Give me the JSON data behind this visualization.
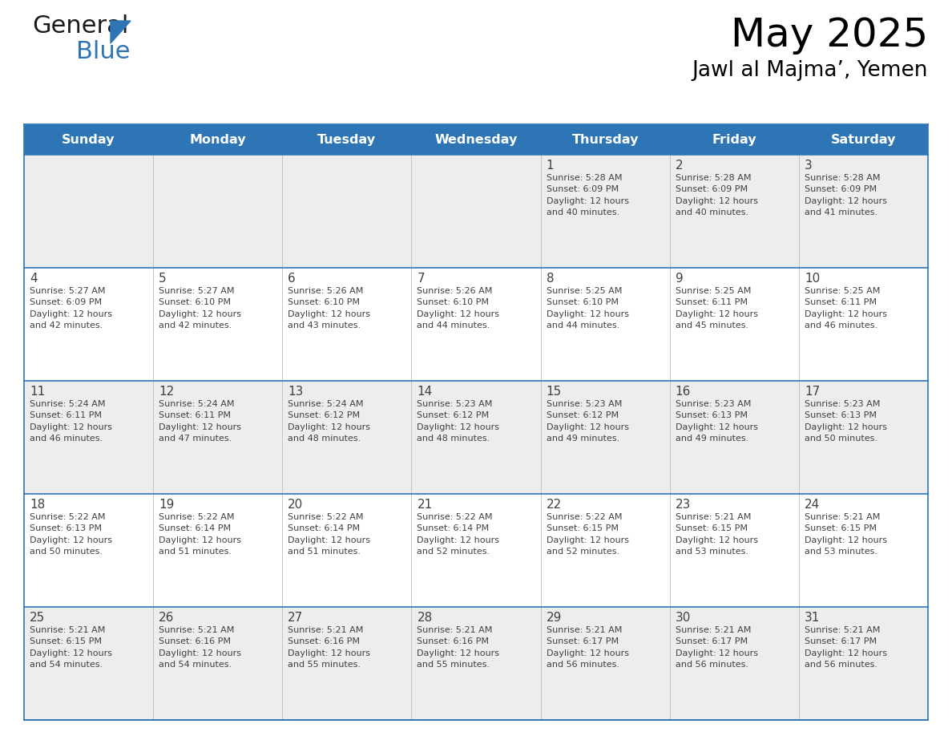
{
  "title": "May 2025",
  "subtitle": "Jawl al Majma’, Yemen",
  "header_bg_color": "#2E75B6",
  "header_text_color": "#FFFFFF",
  "row0_bg": "#EDEDED",
  "row1_bg": "#FFFFFF",
  "row2_bg": "#EDEDED",
  "row3_bg": "#FFFFFF",
  "row4_bg": "#EDEDED",
  "border_color": "#2E75B6",
  "text_color": "#404040",
  "days_of_week": [
    "Sunday",
    "Monday",
    "Tuesday",
    "Wednesday",
    "Thursday",
    "Friday",
    "Saturday"
  ],
  "weeks": [
    [
      {
        "day": "",
        "info": ""
      },
      {
        "day": "",
        "info": ""
      },
      {
        "day": "",
        "info": ""
      },
      {
        "day": "",
        "info": ""
      },
      {
        "day": "1",
        "info": "Sunrise: 5:28 AM\nSunset: 6:09 PM\nDaylight: 12 hours\nand 40 minutes."
      },
      {
        "day": "2",
        "info": "Sunrise: 5:28 AM\nSunset: 6:09 PM\nDaylight: 12 hours\nand 40 minutes."
      },
      {
        "day": "3",
        "info": "Sunrise: 5:28 AM\nSunset: 6:09 PM\nDaylight: 12 hours\nand 41 minutes."
      }
    ],
    [
      {
        "day": "4",
        "info": "Sunrise: 5:27 AM\nSunset: 6:09 PM\nDaylight: 12 hours\nand 42 minutes."
      },
      {
        "day": "5",
        "info": "Sunrise: 5:27 AM\nSunset: 6:10 PM\nDaylight: 12 hours\nand 42 minutes."
      },
      {
        "day": "6",
        "info": "Sunrise: 5:26 AM\nSunset: 6:10 PM\nDaylight: 12 hours\nand 43 minutes."
      },
      {
        "day": "7",
        "info": "Sunrise: 5:26 AM\nSunset: 6:10 PM\nDaylight: 12 hours\nand 44 minutes."
      },
      {
        "day": "8",
        "info": "Sunrise: 5:25 AM\nSunset: 6:10 PM\nDaylight: 12 hours\nand 44 minutes."
      },
      {
        "day": "9",
        "info": "Sunrise: 5:25 AM\nSunset: 6:11 PM\nDaylight: 12 hours\nand 45 minutes."
      },
      {
        "day": "10",
        "info": "Sunrise: 5:25 AM\nSunset: 6:11 PM\nDaylight: 12 hours\nand 46 minutes."
      }
    ],
    [
      {
        "day": "11",
        "info": "Sunrise: 5:24 AM\nSunset: 6:11 PM\nDaylight: 12 hours\nand 46 minutes."
      },
      {
        "day": "12",
        "info": "Sunrise: 5:24 AM\nSunset: 6:11 PM\nDaylight: 12 hours\nand 47 minutes."
      },
      {
        "day": "13",
        "info": "Sunrise: 5:24 AM\nSunset: 6:12 PM\nDaylight: 12 hours\nand 48 minutes."
      },
      {
        "day": "14",
        "info": "Sunrise: 5:23 AM\nSunset: 6:12 PM\nDaylight: 12 hours\nand 48 minutes."
      },
      {
        "day": "15",
        "info": "Sunrise: 5:23 AM\nSunset: 6:12 PM\nDaylight: 12 hours\nand 49 minutes."
      },
      {
        "day": "16",
        "info": "Sunrise: 5:23 AM\nSunset: 6:13 PM\nDaylight: 12 hours\nand 49 minutes."
      },
      {
        "day": "17",
        "info": "Sunrise: 5:23 AM\nSunset: 6:13 PM\nDaylight: 12 hours\nand 50 minutes."
      }
    ],
    [
      {
        "day": "18",
        "info": "Sunrise: 5:22 AM\nSunset: 6:13 PM\nDaylight: 12 hours\nand 50 minutes."
      },
      {
        "day": "19",
        "info": "Sunrise: 5:22 AM\nSunset: 6:14 PM\nDaylight: 12 hours\nand 51 minutes."
      },
      {
        "day": "20",
        "info": "Sunrise: 5:22 AM\nSunset: 6:14 PM\nDaylight: 12 hours\nand 51 minutes."
      },
      {
        "day": "21",
        "info": "Sunrise: 5:22 AM\nSunset: 6:14 PM\nDaylight: 12 hours\nand 52 minutes."
      },
      {
        "day": "22",
        "info": "Sunrise: 5:22 AM\nSunset: 6:15 PM\nDaylight: 12 hours\nand 52 minutes."
      },
      {
        "day": "23",
        "info": "Sunrise: 5:21 AM\nSunset: 6:15 PM\nDaylight: 12 hours\nand 53 minutes."
      },
      {
        "day": "24",
        "info": "Sunrise: 5:21 AM\nSunset: 6:15 PM\nDaylight: 12 hours\nand 53 minutes."
      }
    ],
    [
      {
        "day": "25",
        "info": "Sunrise: 5:21 AM\nSunset: 6:15 PM\nDaylight: 12 hours\nand 54 minutes."
      },
      {
        "day": "26",
        "info": "Sunrise: 5:21 AM\nSunset: 6:16 PM\nDaylight: 12 hours\nand 54 minutes."
      },
      {
        "day": "27",
        "info": "Sunrise: 5:21 AM\nSunset: 6:16 PM\nDaylight: 12 hours\nand 55 minutes."
      },
      {
        "day": "28",
        "info": "Sunrise: 5:21 AM\nSunset: 6:16 PM\nDaylight: 12 hours\nand 55 minutes."
      },
      {
        "day": "29",
        "info": "Sunrise: 5:21 AM\nSunset: 6:17 PM\nDaylight: 12 hours\nand 56 minutes."
      },
      {
        "day": "30",
        "info": "Sunrise: 5:21 AM\nSunset: 6:17 PM\nDaylight: 12 hours\nand 56 minutes."
      },
      {
        "day": "31",
        "info": "Sunrise: 5:21 AM\nSunset: 6:17 PM\nDaylight: 12 hours\nand 56 minutes."
      }
    ]
  ],
  "fig_width": 11.88,
  "fig_height": 9.18,
  "dpi": 100
}
